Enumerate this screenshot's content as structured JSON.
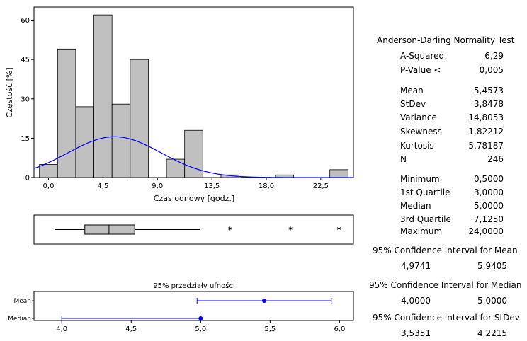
{
  "chart_data": [
    {
      "type": "bar",
      "subtype": "histogram",
      "xlabel": "Czas odnowy [godz.]",
      "ylabel": "Częstość [%]",
      "bin_width": 1.5,
      "bins": [
        {
          "from": -0.75,
          "to": 0.75,
          "value": 5
        },
        {
          "from": 0.75,
          "to": 2.25,
          "value": 49
        },
        {
          "from": 2.25,
          "to": 3.75,
          "value": 27
        },
        {
          "from": 3.75,
          "to": 5.25,
          "value": 62
        },
        {
          "from": 5.25,
          "to": 6.75,
          "value": 28
        },
        {
          "from": 6.75,
          "to": 8.25,
          "value": 45
        },
        {
          "from": 8.25,
          "to": 9.75,
          "value": 0
        },
        {
          "from": 9.75,
          "to": 11.25,
          "value": 7
        },
        {
          "from": 11.25,
          "to": 12.75,
          "value": 18
        },
        {
          "from": 12.75,
          "to": 14.25,
          "value": 0
        },
        {
          "from": 14.25,
          "to": 15.75,
          "value": 1
        },
        {
          "from": 15.75,
          "to": 17.25,
          "value": 0
        },
        {
          "from": 17.25,
          "to": 18.75,
          "value": 0
        },
        {
          "from": 18.75,
          "to": 20.25,
          "value": 1
        },
        {
          "from": 20.25,
          "to": 21.75,
          "value": 0
        },
        {
          "from": 21.75,
          "to": 23.25,
          "value": 0
        },
        {
          "from": 23.25,
          "to": 24.75,
          "value": 3
        }
      ],
      "xlim": [
        -1.2,
        25.2
      ],
      "ylim": [
        0,
        65
      ],
      "xticks": [
        0,
        4.5,
        9,
        13.5,
        18,
        22.5
      ],
      "xtick_labels": [
        "0,0",
        "4,5",
        "9,0",
        "13,5",
        "18,0",
        "22,5"
      ],
      "yticks": [
        0,
        15,
        30,
        45,
        60
      ],
      "ytick_labels": [
        "0",
        "15",
        "30",
        "45",
        "60"
      ],
      "overlay": {
        "type": "normal-curve",
        "mean": 5.4573,
        "stdev": 3.8478,
        "color": "#0000ff"
      },
      "bar_color": "#c0c0c0",
      "grid": false
    },
    {
      "type": "boxplot",
      "xlim": [
        -1.2,
        25.2
      ],
      "min": 0.5,
      "q1": 3.0,
      "median": 5.0,
      "q3": 7.125,
      "whisker_high": 12.5,
      "outliers": [
        15.0,
        20.0,
        24.0,
        24.0
      ]
    },
    {
      "type": "interval",
      "title": "95% przedziały ufności",
      "xlim": [
        3.8,
        6.1
      ],
      "xticks": [
        4.0,
        4.5,
        5.0,
        5.5,
        6.0
      ],
      "xtick_labels": [
        "4,0",
        "4,5",
        "5,0",
        "5,5",
        "6,0"
      ],
      "rows": [
        {
          "label": "Mean",
          "point": 5.4573,
          "low": 4.9741,
          "high": 5.9405
        },
        {
          "label": "Median",
          "point": 5.0,
          "low": 4.0,
          "high": 5.0
        }
      ],
      "color": "#0000ff"
    }
  ],
  "stats": {
    "title": "Anderson-Darling Normality Test",
    "groups": [
      [
        {
          "label": "A-Squared",
          "value": "6,29"
        },
        {
          "label": "P-Value <",
          "value": "0,005"
        }
      ],
      [
        {
          "label": "Mean",
          "value": "5,4573"
        },
        {
          "label": "StDev",
          "value": "3,8478"
        },
        {
          "label": "Variance",
          "value": "14,8053"
        },
        {
          "label": "Skewness",
          "value": "1,82212"
        },
        {
          "label": "Kurtosis",
          "value": "5,78187"
        },
        {
          "label": "N",
          "value": "246"
        }
      ],
      [
        {
          "label": "Minimum",
          "value": "0,5000"
        },
        {
          "label": "1st Quartile",
          "value": "3,0000"
        },
        {
          "label": "Median",
          "value": "5,0000"
        },
        {
          "label": "3rd Quartile",
          "value": "7,1250"
        },
        {
          "label": "Maximum",
          "value": "24,0000"
        }
      ]
    ],
    "ci": [
      {
        "title": "95% Confidence Interval for Mean",
        "low": "4,9741",
        "high": "5,9405"
      },
      {
        "title": "95% Confidence Interval for Median",
        "low": "4,0000",
        "high": "5,0000"
      },
      {
        "title": "95% Confidence Interval for StDev",
        "low": "3,5351",
        "high": "4,2215"
      }
    ]
  }
}
